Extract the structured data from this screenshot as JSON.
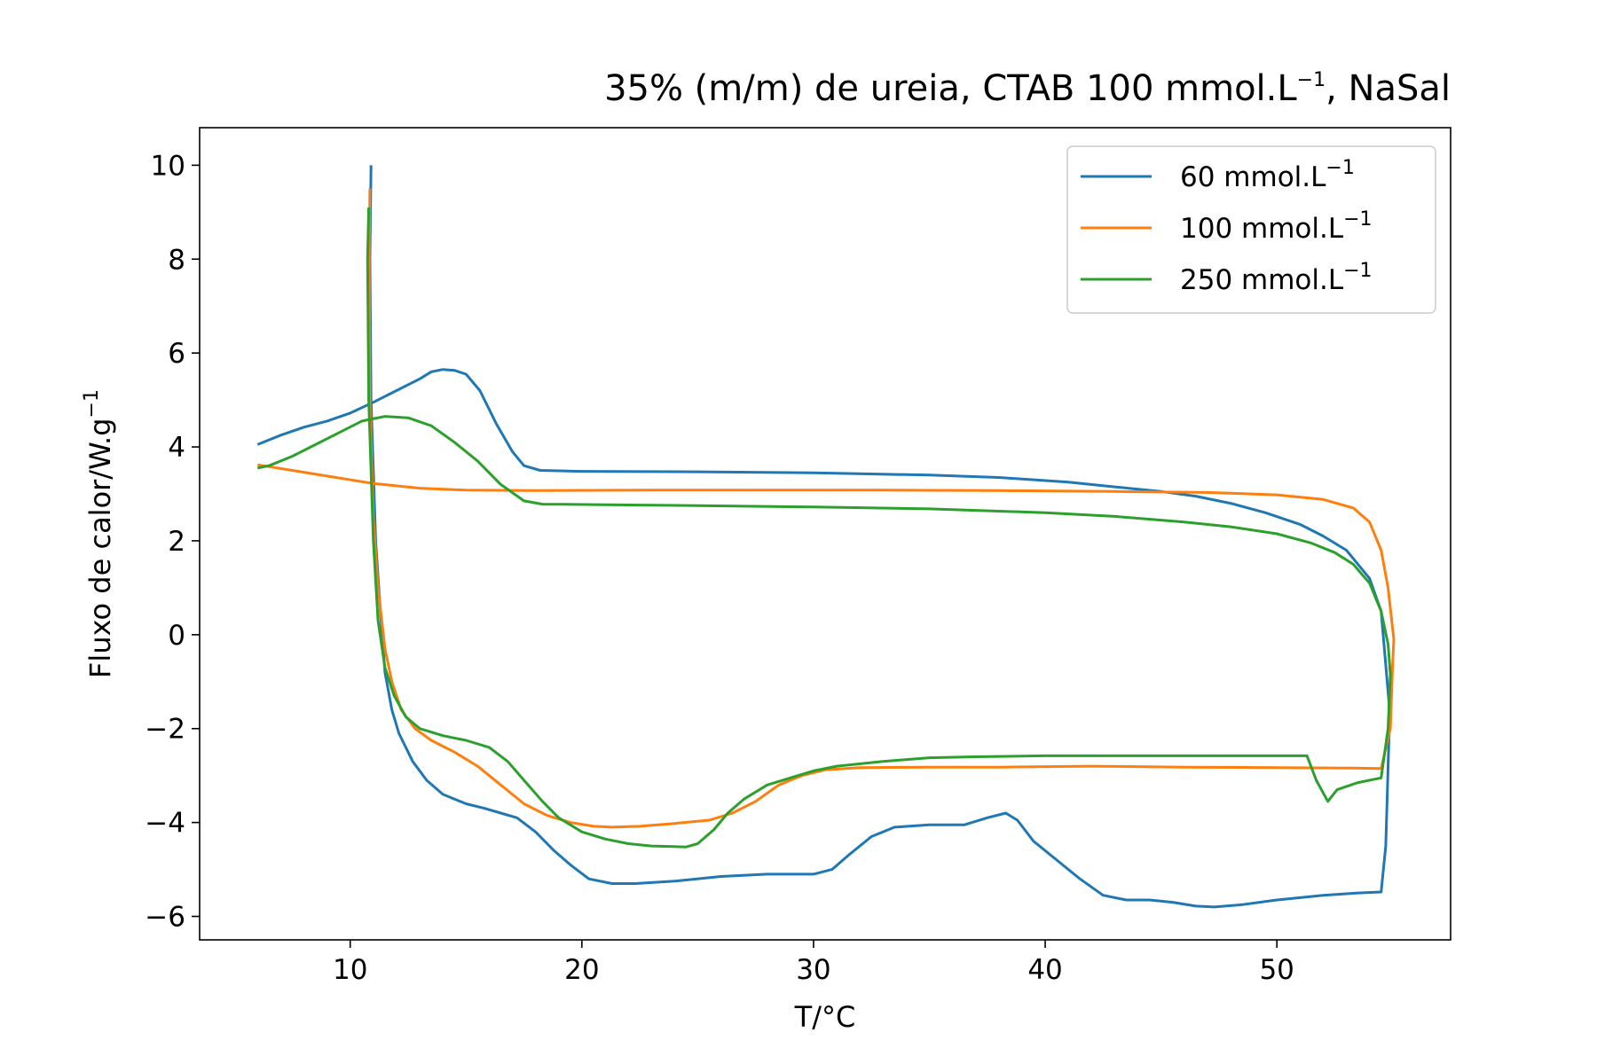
{
  "chart_data": {
    "type": "line",
    "title": {
      "main": "35% (m/m) de ureia, CTAB 100 mmol.L",
      "sup": "−1",
      "tail": ", NaSal"
    },
    "xlabel": "T/°C",
    "ylabel": {
      "main": "Fluxo de calor/W.g",
      "sup": "−1"
    },
    "xlim": [
      3.5,
      57.5
    ],
    "ylim": [
      -6.5,
      10.8
    ],
    "xticks": [
      10,
      20,
      30,
      40,
      50
    ],
    "yticks": [
      10,
      8,
      6,
      4,
      2,
      0,
      -2,
      -4,
      -6
    ],
    "xtick_labels": [
      "10",
      "20",
      "30",
      "40",
      "50"
    ],
    "ytick_labels": [
      "10",
      "8",
      "6",
      "4",
      "2",
      "0",
      "−2",
      "−4",
      "−6"
    ],
    "grid": false,
    "legend_position": "top-right",
    "series": [
      {
        "name": "60 mmol.L",
        "name_sup": "−1",
        "color": "#1f77b4",
        "points": [
          [
            10.9,
            10.0
          ],
          [
            10.85,
            8.0
          ],
          [
            10.9,
            5.0
          ],
          [
            11.1,
            2.0
          ],
          [
            11.3,
            0.5
          ],
          [
            11.5,
            -0.8
          ],
          [
            11.8,
            -1.6
          ],
          [
            12.1,
            -2.1
          ],
          [
            12.7,
            -2.7
          ],
          [
            13.3,
            -3.1
          ],
          [
            14,
            -3.4
          ],
          [
            15,
            -3.6
          ],
          [
            15.8,
            -3.7
          ],
          [
            16.5,
            -3.8
          ],
          [
            17.2,
            -3.9
          ],
          [
            18,
            -4.2
          ],
          [
            18.8,
            -4.6
          ],
          [
            19.5,
            -4.9
          ],
          [
            20.3,
            -5.2
          ],
          [
            21.3,
            -5.3
          ],
          [
            22.3,
            -5.3
          ],
          [
            24,
            -5.25
          ],
          [
            26,
            -5.15
          ],
          [
            28,
            -5.1
          ],
          [
            30,
            -5.1
          ],
          [
            30.8,
            -5.0
          ],
          [
            31.5,
            -4.7
          ],
          [
            32.5,
            -4.3
          ],
          [
            33.5,
            -4.1
          ],
          [
            35,
            -4.05
          ],
          [
            36.5,
            -4.05
          ],
          [
            37.5,
            -3.9
          ],
          [
            38.3,
            -3.8
          ],
          [
            38.8,
            -3.95
          ],
          [
            39.5,
            -4.4
          ],
          [
            40.5,
            -4.8
          ],
          [
            41.5,
            -5.2
          ],
          [
            42.5,
            -5.55
          ],
          [
            43.5,
            -5.65
          ],
          [
            44.5,
            -5.65
          ],
          [
            45.5,
            -5.7
          ],
          [
            46.5,
            -5.78
          ],
          [
            47.3,
            -5.8
          ],
          [
            48.5,
            -5.75
          ],
          [
            50,
            -5.65
          ],
          [
            52,
            -5.55
          ],
          [
            53.5,
            -5.5
          ],
          [
            54.5,
            -5.48
          ],
          [
            54.7,
            -4.5
          ],
          [
            54.85,
            -2.0
          ],
          [
            54.85,
            -1.5
          ],
          [
            54.5,
            0.5
          ],
          [
            54,
            1.2
          ],
          [
            53,
            1.8
          ],
          [
            52,
            2.1
          ],
          [
            51,
            2.35
          ],
          [
            49.5,
            2.6
          ],
          [
            48,
            2.8
          ],
          [
            46.5,
            2.95
          ],
          [
            45,
            3.05
          ],
          [
            43,
            3.15
          ],
          [
            41,
            3.25
          ],
          [
            38,
            3.35
          ],
          [
            35,
            3.4
          ],
          [
            30,
            3.45
          ],
          [
            25,
            3.47
          ],
          [
            20,
            3.48
          ],
          [
            18.2,
            3.5
          ],
          [
            17.5,
            3.6
          ],
          [
            17,
            3.9
          ],
          [
            16.3,
            4.5
          ],
          [
            15.6,
            5.2
          ],
          [
            15,
            5.55
          ],
          [
            14.5,
            5.63
          ],
          [
            14,
            5.65
          ],
          [
            13.5,
            5.6
          ],
          [
            13,
            5.45
          ],
          [
            12,
            5.2
          ],
          [
            11,
            4.95
          ],
          [
            10,
            4.72
          ],
          [
            9,
            4.55
          ],
          [
            8,
            4.42
          ],
          [
            7,
            4.25
          ],
          [
            6,
            4.05
          ]
        ]
      },
      {
        "name": "100 mmol.L",
        "name_sup": "−1",
        "color": "#ff7f0e",
        "points": [
          [
            10.85,
            9.5
          ],
          [
            10.82,
            8.0
          ],
          [
            10.85,
            5.0
          ],
          [
            11.0,
            2.5
          ],
          [
            11.2,
            1.0
          ],
          [
            11.5,
            -0.3
          ],
          [
            11.8,
            -1.0
          ],
          [
            12.2,
            -1.6
          ],
          [
            12.8,
            -2.0
          ],
          [
            13.5,
            -2.25
          ],
          [
            14.5,
            -2.5
          ],
          [
            15.5,
            -2.8
          ],
          [
            16.5,
            -3.2
          ],
          [
            17.5,
            -3.6
          ],
          [
            18.5,
            -3.85
          ],
          [
            19.5,
            -4.0
          ],
          [
            20.5,
            -4.08
          ],
          [
            21.3,
            -4.1
          ],
          [
            22.5,
            -4.08
          ],
          [
            24,
            -4.02
          ],
          [
            25.5,
            -3.95
          ],
          [
            26.5,
            -3.8
          ],
          [
            27.5,
            -3.55
          ],
          [
            28.5,
            -3.2
          ],
          [
            29.5,
            -3.0
          ],
          [
            30.5,
            -2.88
          ],
          [
            32,
            -2.83
          ],
          [
            35,
            -2.82
          ],
          [
            38,
            -2.82
          ],
          [
            42,
            -2.8
          ],
          [
            46,
            -2.82
          ],
          [
            50,
            -2.83
          ],
          [
            53,
            -2.84
          ],
          [
            54.5,
            -2.85
          ],
          [
            54.9,
            -2.0
          ],
          [
            55.0,
            -0.6
          ],
          [
            55.05,
            -0.1
          ],
          [
            54.8,
            1.0
          ],
          [
            54.5,
            1.8
          ],
          [
            54,
            2.4
          ],
          [
            53.3,
            2.7
          ],
          [
            52,
            2.88
          ],
          [
            50,
            2.98
          ],
          [
            47,
            3.03
          ],
          [
            43,
            3.05
          ],
          [
            38,
            3.07
          ],
          [
            33,
            3.08
          ],
          [
            28,
            3.08
          ],
          [
            23,
            3.08
          ],
          [
            18,
            3.07
          ],
          [
            15,
            3.08
          ],
          [
            13,
            3.12
          ],
          [
            11,
            3.22
          ],
          [
            9,
            3.38
          ],
          [
            7.5,
            3.5
          ],
          [
            6,
            3.62
          ]
        ]
      },
      {
        "name": "250 mmol.L",
        "name_sup": "−1",
        "color": "#2ca02c",
        "points": [
          [
            10.8,
            9.1
          ],
          [
            10.75,
            8.0
          ],
          [
            10.8,
            5.0
          ],
          [
            11.0,
            2.0
          ],
          [
            11.2,
            0.3
          ],
          [
            11.5,
            -0.7
          ],
          [
            11.9,
            -1.3
          ],
          [
            12.4,
            -1.75
          ],
          [
            13,
            -2.0
          ],
          [
            14,
            -2.15
          ],
          [
            15,
            -2.25
          ],
          [
            16,
            -2.4
          ],
          [
            16.8,
            -2.7
          ],
          [
            17.5,
            -3.1
          ],
          [
            18.3,
            -3.55
          ],
          [
            19,
            -3.9
          ],
          [
            20,
            -4.2
          ],
          [
            21,
            -4.35
          ],
          [
            22,
            -4.45
          ],
          [
            23,
            -4.5
          ],
          [
            24.5,
            -4.52
          ],
          [
            25,
            -4.45
          ],
          [
            25.7,
            -4.15
          ],
          [
            26.3,
            -3.8
          ],
          [
            27,
            -3.5
          ],
          [
            28,
            -3.2
          ],
          [
            29,
            -3.05
          ],
          [
            30,
            -2.9
          ],
          [
            31,
            -2.8
          ],
          [
            33,
            -2.7
          ],
          [
            35,
            -2.62
          ],
          [
            37,
            -2.6
          ],
          [
            40,
            -2.58
          ],
          [
            44,
            -2.58
          ],
          [
            48,
            -2.58
          ],
          [
            51.3,
            -2.58
          ],
          [
            51.7,
            -3.1
          ],
          [
            52.2,
            -3.55
          ],
          [
            52.6,
            -3.3
          ],
          [
            53.5,
            -3.15
          ],
          [
            54.5,
            -3.05
          ],
          [
            54.8,
            -2.0
          ],
          [
            54.9,
            -0.85
          ],
          [
            54.8,
            -0.2
          ],
          [
            54.5,
            0.5
          ],
          [
            54,
            1.1
          ],
          [
            53.3,
            1.5
          ],
          [
            52.5,
            1.75
          ],
          [
            51.5,
            1.95
          ],
          [
            50,
            2.15
          ],
          [
            48,
            2.3
          ],
          [
            46,
            2.4
          ],
          [
            43,
            2.52
          ],
          [
            40,
            2.6
          ],
          [
            35,
            2.68
          ],
          [
            30,
            2.72
          ],
          [
            25,
            2.75
          ],
          [
            21,
            2.77
          ],
          [
            18.3,
            2.78
          ],
          [
            17.5,
            2.85
          ],
          [
            16.5,
            3.2
          ],
          [
            15.5,
            3.7
          ],
          [
            14.5,
            4.1
          ],
          [
            13.5,
            4.45
          ],
          [
            12.5,
            4.62
          ],
          [
            11.5,
            4.65
          ],
          [
            10.5,
            4.55
          ],
          [
            9.5,
            4.3
          ],
          [
            8.5,
            4.05
          ],
          [
            7.5,
            3.8
          ],
          [
            6.5,
            3.6
          ],
          [
            6,
            3.55
          ]
        ]
      }
    ]
  }
}
